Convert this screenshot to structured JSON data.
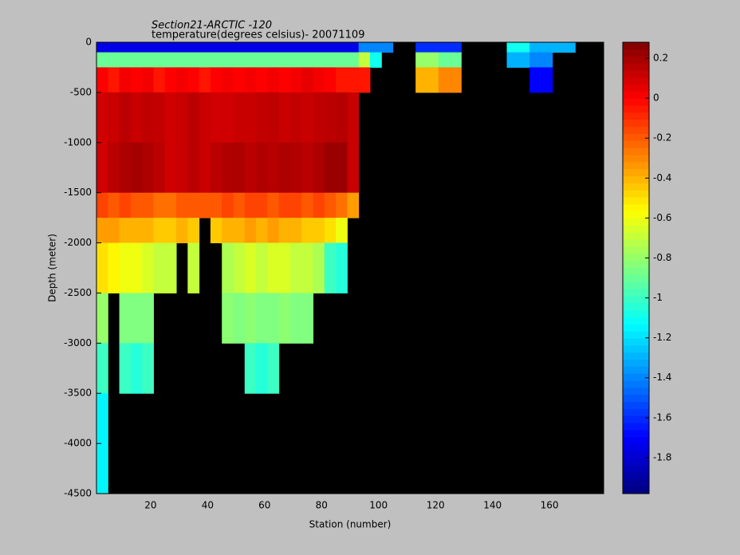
{
  "chart_data": {
    "type": "heatmap",
    "title": "Section21-ARCTIC -120",
    "subtitle": "temperature(degrees celsius)- 20071109",
    "x_label": "Station (number)",
    "y_label": "Depth (meter)",
    "x": [
      1,
      5,
      9,
      13,
      17,
      21,
      25,
      29,
      33,
      37,
      41,
      45,
      49,
      53,
      57,
      61,
      65,
      69,
      73,
      77,
      81,
      85,
      89,
      93,
      97,
      101,
      105,
      113,
      121,
      129,
      137,
      145,
      153,
      161,
      169,
      179
    ],
    "y": [
      0,
      -100,
      -250,
      -500,
      -1000,
      -1500,
      -1750,
      -2000,
      -2500,
      -3000,
      -3500,
      -4500
    ],
    "values": [
      [
        -1.75,
        -1.75,
        -1.75,
        -1.75,
        -1.75,
        -1.75,
        -1.75,
        -1.75,
        -1.75,
        -1.75,
        -1.75,
        -1.75,
        -1.75,
        -1.75,
        -1.75,
        -1.75,
        -1.75,
        -1.75,
        -1.75,
        -1.75,
        -1.75,
        -1.75,
        -1.75,
        -1.4,
        -1.4,
        -1.4,
        null,
        -1.6,
        -1.6,
        null,
        null,
        -1.1,
        -1.3,
        -1.3,
        null
      ],
      [
        -0.9,
        -0.9,
        -0.9,
        -0.9,
        -0.9,
        -0.9,
        -0.9,
        -0.9,
        -0.9,
        -0.9,
        -0.9,
        -0.9,
        -0.9,
        -0.9,
        -0.9,
        -0.9,
        -0.9,
        -0.9,
        -0.9,
        -0.9,
        -0.9,
        -0.9,
        -0.9,
        -0.7,
        -1.1,
        null,
        null,
        -0.8,
        -0.9,
        null,
        null,
        -1.3,
        -1.4,
        null,
        null
      ],
      [
        0.0,
        -0.05,
        0.02,
        0.0,
        0.02,
        -0.05,
        0.0,
        0.02,
        0.0,
        -0.05,
        0.0,
        0.02,
        0.0,
        0.02,
        0.0,
        0.02,
        0.0,
        0.02,
        0.05,
        0.02,
        0.0,
        -0.05,
        -0.05,
        -0.05,
        null,
        null,
        null,
        -0.4,
        -0.3,
        null,
        null,
        null,
        -1.7,
        null,
        null
      ],
      [
        0.1,
        0.12,
        0.15,
        0.12,
        0.14,
        0.13,
        0.1,
        0.12,
        0.15,
        0.12,
        0.1,
        0.1,
        0.12,
        0.12,
        0.13,
        0.14,
        0.12,
        0.13,
        0.12,
        0.14,
        0.15,
        0.16,
        0.12,
        null,
        null,
        null,
        null,
        null,
        null,
        null,
        null,
        null,
        null,
        null,
        null
      ],
      [
        0.1,
        0.15,
        0.18,
        0.2,
        0.18,
        0.15,
        0.1,
        0.12,
        0.15,
        0.12,
        0.15,
        0.17,
        0.18,
        0.15,
        0.17,
        0.16,
        0.18,
        0.17,
        0.15,
        0.18,
        0.22,
        0.22,
        0.12,
        null,
        null,
        null,
        null,
        null,
        null,
        null,
        null,
        null,
        null,
        null,
        null
      ],
      [
        -0.15,
        -0.2,
        -0.15,
        -0.2,
        -0.2,
        -0.25,
        -0.25,
        -0.2,
        -0.2,
        -0.2,
        -0.2,
        -0.15,
        -0.2,
        -0.15,
        -0.15,
        -0.2,
        -0.15,
        -0.15,
        -0.2,
        -0.15,
        -0.2,
        -0.25,
        -0.35,
        null,
        null,
        null,
        null,
        null,
        null,
        null,
        null,
        null,
        null,
        null,
        null
      ],
      [
        -0.35,
        -0.35,
        -0.4,
        -0.4,
        -0.4,
        -0.45,
        -0.45,
        -0.4,
        -0.45,
        null,
        -0.45,
        -0.4,
        -0.4,
        -0.35,
        -0.4,
        -0.35,
        -0.4,
        -0.4,
        -0.45,
        -0.45,
        -0.5,
        -0.6,
        null,
        null,
        null,
        null,
        null,
        null,
        null,
        null,
        null,
        null,
        null,
        null,
        null
      ],
      [
        -0.5,
        -0.55,
        -0.6,
        -0.6,
        -0.65,
        -0.7,
        -0.7,
        null,
        -0.7,
        null,
        null,
        -0.75,
        -0.7,
        -0.65,
        -0.7,
        -0.65,
        -0.65,
        -0.7,
        -0.7,
        -0.75,
        -1.0,
        -1.05,
        null,
        null,
        null,
        null,
        null,
        null,
        null,
        null,
        null,
        null,
        null,
        null,
        null
      ],
      [
        -0.8,
        null,
        -0.85,
        -0.85,
        -0.85,
        null,
        null,
        null,
        null,
        null,
        null,
        -0.82,
        -0.85,
        -0.82,
        -0.85,
        -0.85,
        -0.82,
        -0.85,
        -0.85,
        null,
        null,
        null,
        null,
        null,
        null,
        null,
        null,
        null,
        null,
        null,
        null,
        null,
        null,
        null,
        null
      ],
      [
        -1.0,
        null,
        -1.0,
        -1.05,
        -1.0,
        null,
        null,
        null,
        null,
        null,
        null,
        null,
        null,
        -1.0,
        -1.05,
        -1.0,
        null,
        null,
        null,
        null,
        null,
        null,
        null,
        null,
        null,
        null,
        null,
        null,
        null,
        null,
        null,
        null,
        null,
        null,
        null
      ],
      [
        -1.15,
        null,
        null,
        null,
        null,
        null,
        null,
        null,
        null,
        null,
        null,
        null,
        null,
        null,
        null,
        null,
        null,
        null,
        null,
        null,
        null,
        null,
        null,
        null,
        null,
        null,
        null,
        null,
        null,
        null,
        null,
        null,
        null,
        null,
        null
      ]
    ],
    "xlim": [
      1,
      179
    ],
    "xticks": [
      20,
      40,
      60,
      80,
      100,
      120,
      140,
      160
    ],
    "ylim": [
      -4500,
      0
    ],
    "yticks": [
      0,
      -500,
      -1000,
      -1500,
      -2000,
      -2500,
      -3000,
      -3500,
      -4000,
      -4500
    ],
    "clim": [
      -1.98,
      0.28
    ],
    "cticks": [
      0.2,
      0,
      -0.2,
      -0.4,
      -0.6,
      -0.8,
      -1,
      -1.2,
      -1.4,
      -1.6,
      -1.8
    ],
    "colormap": "jet",
    "background": "#000000"
  }
}
